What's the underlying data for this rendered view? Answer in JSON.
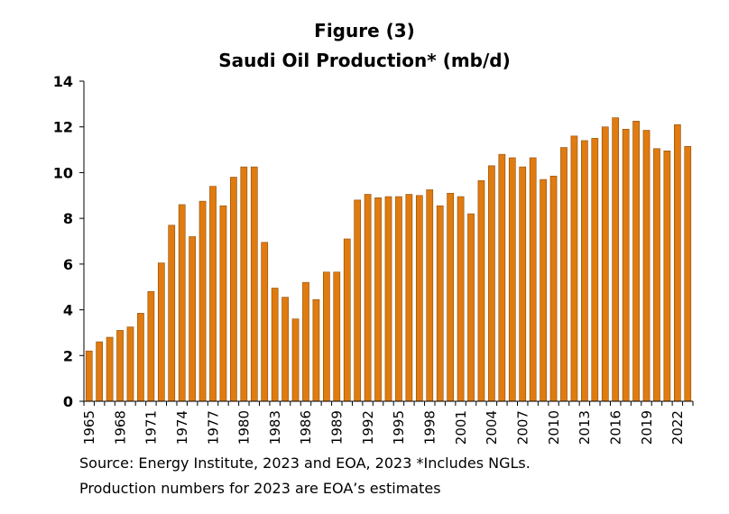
{
  "chart_data": {
    "type": "bar",
    "title_line1": "Figure (3)",
    "title_line2": "Saudi Oil Production* (mb/d)",
    "xlabel": "",
    "ylabel": "",
    "ylim": [
      0,
      14
    ],
    "yticks": [
      0,
      2,
      4,
      6,
      8,
      10,
      12,
      14
    ],
    "grid": false,
    "bar_color": "#E07B10",
    "bar_edge_color": "#8A4A08",
    "categories": [
      "1965",
      "1966",
      "1967",
      "1968",
      "1969",
      "1970",
      "1971",
      "1972",
      "1973",
      "1974",
      "1975",
      "1976",
      "1977",
      "1978",
      "1979",
      "1980",
      "1981",
      "1982",
      "1983",
      "1984",
      "1985",
      "1986",
      "1987",
      "1988",
      "1989",
      "1990",
      "1991",
      "1992",
      "1993",
      "1994",
      "1995",
      "1996",
      "1997",
      "1998",
      "1999",
      "2000",
      "2001",
      "2002",
      "2003",
      "2004",
      "2005",
      "2006",
      "2007",
      "2008",
      "2009",
      "2010",
      "2011",
      "2012",
      "2013",
      "2014",
      "2015",
      "2016",
      "2017",
      "2018",
      "2019",
      "2020",
      "2021",
      "2022",
      "2023"
    ],
    "tick_labels": [
      "1965",
      "1968",
      "1971",
      "1974",
      "1977",
      "1980",
      "1983",
      "1986",
      "1989",
      "1992",
      "1995",
      "1998",
      "2001",
      "2004",
      "2007",
      "2010",
      "2013",
      "2016",
      "2019",
      "2022"
    ],
    "values": [
      2.2,
      2.6,
      2.8,
      3.1,
      3.25,
      3.85,
      4.8,
      6.05,
      7.7,
      8.6,
      7.2,
      8.75,
      9.4,
      8.55,
      9.8,
      10.25,
      10.25,
      6.95,
      4.95,
      4.55,
      3.6,
      5.2,
      4.45,
      5.65,
      5.65,
      7.1,
      8.8,
      9.05,
      8.9,
      8.95,
      8.95,
      9.05,
      9.0,
      9.25,
      8.55,
      9.1,
      8.95,
      8.2,
      9.65,
      10.3,
      10.8,
      10.65,
      10.25,
      10.65,
      9.7,
      9.85,
      11.1,
      11.6,
      11.4,
      11.5,
      12.0,
      12.4,
      11.9,
      12.25,
      11.85,
      11.05,
      10.95,
      12.1,
      11.15
    ],
    "source_line1": "Source: Energy Institute, 2023 and EOA, 2023  *Includes NGLs.",
    "source_line2": "Production numbers for 2023 are EOA’s estimates"
  }
}
